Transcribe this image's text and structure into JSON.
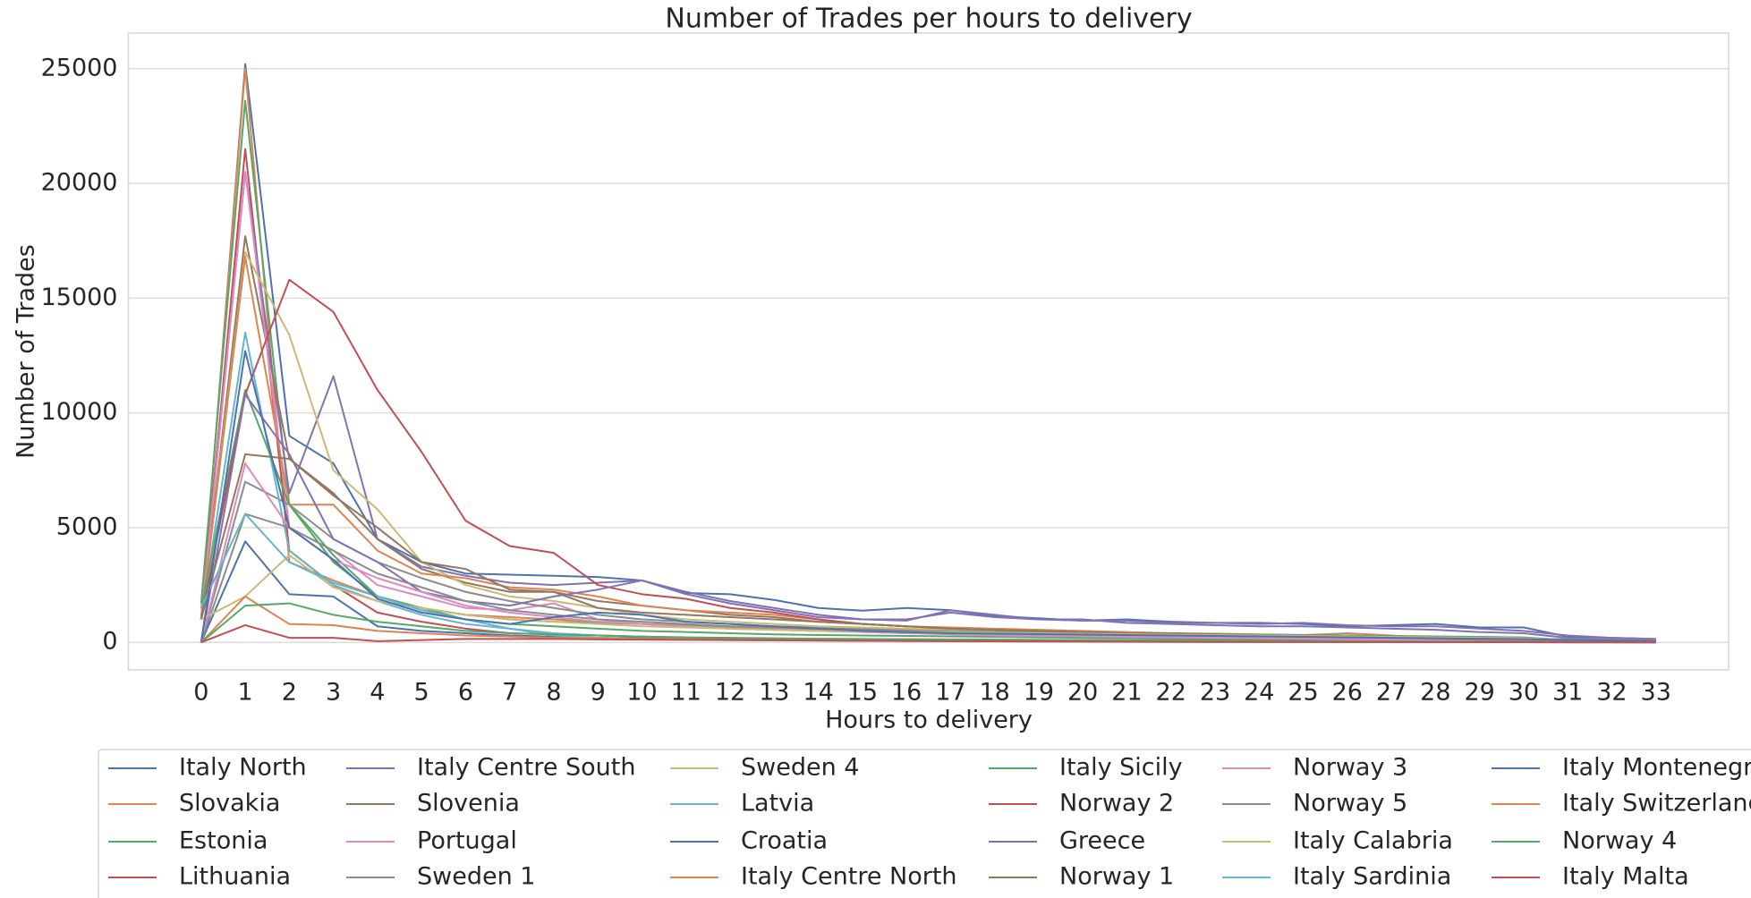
{
  "chart_data": {
    "type": "line",
    "title": "Number of Trades per hours to delivery",
    "xlabel": "Hours to delivery",
    "ylabel": "Number of Trades",
    "x": [
      0,
      1,
      2,
      3,
      4,
      5,
      6,
      7,
      8,
      9,
      10,
      11,
      12,
      13,
      14,
      15,
      16,
      17,
      18,
      19,
      20,
      21,
      22,
      23,
      24,
      25,
      26,
      27,
      28,
      29,
      30,
      31,
      32,
      33
    ],
    "xlim": [
      -1.65,
      34.65
    ],
    "xticks": [
      0,
      1,
      2,
      3,
      4,
      5,
      6,
      7,
      8,
      9,
      10,
      11,
      12,
      13,
      14,
      15,
      16,
      17,
      18,
      19,
      20,
      21,
      22,
      23,
      24,
      25,
      26,
      27,
      28,
      29,
      30,
      31,
      32,
      33
    ],
    "ylim": [
      -1200,
      26550
    ],
    "yticks": [
      0,
      5000,
      10000,
      15000,
      20000,
      25000
    ],
    "grid": "y",
    "legend": "bottom",
    "series": [
      {
        "name": "Italy North",
        "color": "#4c72b0",
        "values": [
          1000,
          25200,
          9000,
          7800,
          4500,
          3500,
          3000,
          2950,
          2900,
          2850,
          2700,
          2150,
          2100,
          1850,
          1500,
          1380,
          1500,
          1400,
          1150,
          1050,
          950,
          1000,
          900,
          850,
          850,
          800,
          700,
          750,
          800,
          650,
          650,
          250,
          200,
          150
        ]
      },
      {
        "name": "Slovakia",
        "color": "#dd8452",
        "values": [
          1000,
          25000,
          3500,
          2700,
          2000,
          1500,
          1200,
          1100,
          1000,
          900,
          800,
          700,
          650,
          600,
          550,
          500,
          450,
          400,
          350,
          330,
          300,
          280,
          260,
          240,
          220,
          200,
          180,
          160,
          140,
          120,
          100,
          80,
          60,
          50
        ]
      },
      {
        "name": "Estonia",
        "color": "#55a868",
        "values": [
          1700,
          23600,
          6000,
          3500,
          2000,
          1500,
          1000,
          800,
          700,
          600,
          500,
          450,
          400,
          350,
          320,
          300,
          280,
          260,
          240,
          220,
          200,
          180,
          160,
          140,
          120,
          100,
          90,
          80,
          70,
          60,
          50,
          40,
          30,
          20
        ]
      },
      {
        "name": "Lithuania",
        "color": "#c44e52",
        "values": [
          1000,
          21500,
          4000,
          2500,
          1300,
          900,
          600,
          400,
          350,
          300,
          250,
          220,
          200,
          180,
          160,
          150,
          140,
          130,
          120,
          110,
          100,
          90,
          80,
          70,
          60,
          50,
          45,
          40,
          35,
          30,
          25,
          20,
          15,
          10
        ]
      },
      {
        "name": "Italy Centre South",
        "color": "#8172b3",
        "values": [
          1000,
          20500,
          6500,
          11600,
          4500,
          3300,
          2900,
          2600,
          2500,
          2600,
          2700,
          2200,
          1800,
          1500,
          1200,
          1000,
          950,
          1400,
          1200,
          1000,
          950,
          950,
          850,
          850,
          800,
          850,
          750,
          700,
          700,
          600,
          500,
          300,
          200,
          150
        ]
      },
      {
        "name": "Slovenia",
        "color": "#937860",
        "values": [
          1000,
          17700,
          8000,
          6500,
          4500,
          3200,
          2600,
          2200,
          2200,
          1800,
          1600,
          1400,
          1200,
          1100,
          900,
          800,
          700,
          600,
          550,
          500,
          450,
          400,
          400,
          350,
          300,
          300,
          250,
          200,
          200,
          150,
          150,
          100,
          80,
          60
        ]
      },
      {
        "name": "Portugal",
        "color": "#da8bc3",
        "values": [
          1000,
          20500,
          5000,
          4000,
          2500,
          2000,
          1500,
          1400,
          1700,
          1000,
          800,
          700,
          600,
          550,
          500,
          450,
          400,
          350,
          300,
          280,
          260,
          240,
          220,
          200,
          180,
          160,
          140,
          120,
          100,
          90,
          80,
          70,
          60,
          50
        ]
      },
      {
        "name": "Sweden 1",
        "color": "#8c8c8c",
        "values": [
          0,
          7000,
          6000,
          4500,
          3500,
          2800,
          2200,
          1800,
          1500,
          1200,
          1000,
          900,
          800,
          700,
          650,
          600,
          550,
          500,
          450,
          420,
          400,
          380,
          360,
          340,
          320,
          300,
          280,
          260,
          240,
          220,
          200,
          100,
          80,
          60
        ]
      },
      {
        "name": "Sweden 4",
        "color": "#ccb974",
        "values": [
          1000,
          17000,
          13400,
          7500,
          5800,
          3500,
          2500,
          2000,
          1800,
          1500,
          1200,
          1000,
          900,
          800,
          700,
          650,
          600,
          550,
          500,
          450,
          400,
          380,
          360,
          340,
          320,
          300,
          280,
          260,
          240,
          220,
          200,
          100,
          80,
          60
        ]
      },
      {
        "name": "Latvia",
        "color": "#64b5cd",
        "values": [
          1000,
          13500,
          4000,
          2500,
          1800,
          1200,
          800,
          600,
          400,
          300,
          250,
          200,
          180,
          160,
          150,
          140,
          130,
          120,
          110,
          100,
          90,
          80,
          70,
          60,
          50,
          45,
          40,
          35,
          30,
          25,
          20,
          15,
          10,
          5
        ]
      },
      {
        "name": "Croatia",
        "color": "#4c72b0",
        "values": [
          0,
          4400,
          2100,
          2000,
          700,
          500,
          400,
          300,
          250,
          200,
          180,
          160,
          140,
          120,
          110,
          100,
          90,
          80,
          70,
          60,
          50,
          45,
          40,
          35,
          30,
          25,
          20,
          15,
          10,
          8,
          6,
          4,
          2,
          0
        ]
      },
      {
        "name": "Italy Centre North",
        "color": "#dd8452",
        "values": [
          1000,
          16800,
          6000,
          6000,
          4000,
          3000,
          2800,
          2400,
          2300,
          2000,
          1600,
          1400,
          1300,
          1200,
          1000,
          800,
          700,
          650,
          600,
          550,
          500,
          450,
          400,
          380,
          350,
          320,
          400,
          300,
          150,
          100,
          80,
          60,
          40,
          20
        ]
      },
      {
        "name": "Italy Sicily",
        "color": "#55a868",
        "values": [
          1500,
          11000,
          6000,
          3800,
          2000,
          1500,
          1200,
          1000,
          900,
          850,
          800,
          750,
          700,
          650,
          600,
          550,
          500,
          480,
          460,
          440,
          420,
          400,
          380,
          360,
          340,
          320,
          300,
          280,
          260,
          240,
          220,
          100,
          80,
          60
        ]
      },
      {
        "name": "Norway 2",
        "color": "#c44e52",
        "values": [
          1000,
          10800,
          15800,
          14400,
          11000,
          8300,
          5300,
          4200,
          3900,
          2500,
          2100,
          1900,
          1500,
          1300,
          1000,
          800,
          700,
          600,
          550,
          500,
          450,
          400,
          400,
          350,
          300,
          300,
          250,
          200,
          150,
          120,
          100,
          80,
          60,
          40
        ]
      },
      {
        "name": "Greece",
        "color": "#8172b3",
        "values": [
          0,
          10800,
          8200,
          4500,
          3500,
          2200,
          1800,
          1600,
          2000,
          2300,
          2700,
          2100,
          1700,
          1400,
          1100,
          1000,
          1000,
          1300,
          1100,
          1000,
          1000,
          850,
          800,
          750,
          700,
          700,
          650,
          600,
          550,
          450,
          400,
          200,
          150,
          100
        ]
      },
      {
        "name": "Norway 1",
        "color": "#937860",
        "values": [
          1000,
          8200,
          8000,
          6400,
          5000,
          3500,
          3200,
          2300,
          2200,
          1500,
          1300,
          1200,
          1100,
          1000,
          900,
          800,
          700,
          600,
          550,
          500,
          450,
          400,
          400,
          350,
          300,
          300,
          250,
          200,
          150,
          120,
          100,
          80,
          60,
          40
        ]
      },
      {
        "name": "Norway 3",
        "color": "#da8bc3",
        "values": [
          0,
          7800,
          5000,
          3600,
          2800,
          2200,
          1600,
          1300,
          1100,
          900,
          800,
          700,
          600,
          550,
          500,
          450,
          400,
          380,
          360,
          340,
          320,
          300,
          280,
          260,
          240,
          220,
          200,
          180,
          160,
          140,
          120,
          100,
          80,
          60
        ]
      },
      {
        "name": "Norway 5",
        "color": "#8c8c8c",
        "values": [
          0,
          5600,
          5000,
          4000,
          3000,
          2400,
          1800,
          1400,
          1200,
          1000,
          900,
          800,
          700,
          650,
          600,
          550,
          500,
          450,
          400,
          380,
          360,
          340,
          320,
          300,
          280,
          260,
          240,
          220,
          200,
          180,
          160,
          140,
          120,
          100
        ]
      },
      {
        "name": "Italy Calabria",
        "color": "#ccb974",
        "values": [
          1000,
          2000,
          3800,
          2400,
          1800,
          1500,
          1200,
          1000,
          900,
          800,
          700,
          650,
          600,
          550,
          500,
          480,
          460,
          440,
          420,
          400,
          380,
          360,
          340,
          320,
          300,
          280,
          260,
          240,
          220,
          200,
          180,
          100,
          80,
          60
        ]
      },
      {
        "name": "Italy Sardinia",
        "color": "#64b5cd",
        "values": [
          1500,
          5600,
          3500,
          2600,
          2000,
          1400,
          1000,
          600,
          300,
          200,
          150,
          120,
          100,
          90,
          80,
          70,
          60,
          50,
          45,
          40,
          35,
          30,
          25,
          20,
          18,
          16,
          14,
          12,
          10,
          8,
          6,
          4,
          2,
          0
        ]
      },
      {
        "name": "Italy Montenegro",
        "color": "#4c72b0",
        "values": [
          0,
          12700,
          5000,
          3600,
          1900,
          1300,
          1000,
          800,
          1100,
          1300,
          1200,
          900,
          800,
          700,
          600,
          500,
          450,
          400,
          380,
          360,
          340,
          320,
          300,
          280,
          260,
          240,
          220,
          200,
          180,
          160,
          140,
          100,
          80,
          60
        ]
      },
      {
        "name": "Italy Switzerland",
        "color": "#dd8452",
        "values": [
          0,
          2000,
          800,
          750,
          500,
          400,
          300,
          250,
          200,
          180,
          160,
          140,
          120,
          100,
          90,
          80,
          70,
          60,
          50,
          45,
          40,
          35,
          30,
          25,
          20,
          18,
          16,
          14,
          12,
          10,
          8,
          6,
          4,
          2
        ]
      },
      {
        "name": "Norway 4",
        "color": "#55a868",
        "values": [
          0,
          1600,
          1700,
          1200,
          900,
          700,
          500,
          400,
          350,
          300,
          250,
          200,
          180,
          160,
          150,
          140,
          130,
          120,
          110,
          100,
          90,
          80,
          70,
          60,
          50,
          45,
          40,
          35,
          30,
          25,
          20,
          15,
          10,
          5
        ]
      },
      {
        "name": "Italy Malta",
        "color": "#c44e52",
        "values": [
          0,
          750,
          200,
          200,
          50,
          100,
          150,
          150,
          150,
          130,
          120,
          110,
          100,
          90,
          80,
          70,
          60,
          50,
          45,
          40,
          35,
          30,
          25,
          20,
          18,
          16,
          14,
          12,
          10,
          8,
          6,
          4,
          2,
          0
        ]
      }
    ]
  }
}
